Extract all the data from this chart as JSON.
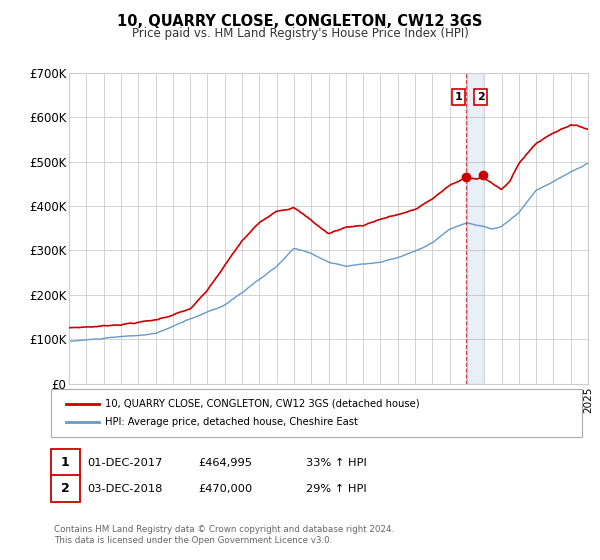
{
  "title": "10, QUARRY CLOSE, CONGLETON, CW12 3GS",
  "subtitle": "Price paid vs. HM Land Registry's House Price Index (HPI)",
  "legend_line1": "10, QUARRY CLOSE, CONGLETON, CW12 3GS (detached house)",
  "legend_line2": "HPI: Average price, detached house, Cheshire East",
  "annotation1_date": "01-DEC-2017",
  "annotation1_price": "£464,995",
  "annotation1_hpi": "33% ↑ HPI",
  "annotation1_year": 2017.92,
  "annotation1_value": 464995,
  "annotation2_date": "03-DEC-2018",
  "annotation2_price": "£470,000",
  "annotation2_hpi": "29% ↑ HPI",
  "annotation2_year": 2018.92,
  "annotation2_value": 470000,
  "xmin": 1995,
  "xmax": 2025,
  "ymin": 0,
  "ymax": 700000,
  "yticks": [
    0,
    100000,
    200000,
    300000,
    400000,
    500000,
    600000,
    700000
  ],
  "ytick_labels": [
    "£0",
    "£100K",
    "£200K",
    "£300K",
    "£400K",
    "£500K",
    "£600K",
    "£700K"
  ],
  "red_color": "#cc0000",
  "blue_color": "#6699cc",
  "background_color": "#ffffff",
  "grid_color": "#cccccc",
  "footer": "Contains HM Land Registry data © Crown copyright and database right 2024.\nThis data is licensed under the Open Government Licence v3.0."
}
